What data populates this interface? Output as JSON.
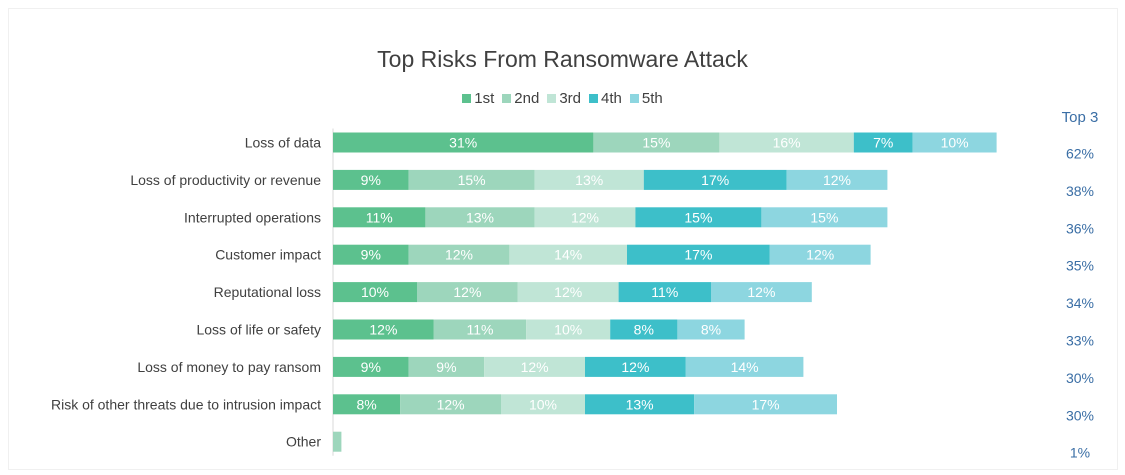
{
  "chart_data": {
    "type": "bar",
    "orientation": "horizontal",
    "stacked": true,
    "title": "Top Risks From Ransomware Attack",
    "categories": [
      "Loss of data",
      "Loss of productivity or revenue",
      "Interrupted operations",
      "Customer impact",
      "Reputational loss",
      "Loss of life or safety",
      "Loss of money to pay ransom",
      "Risk of other threats due to intrusion impact",
      "Other"
    ],
    "series": [
      {
        "name": "1st",
        "color": "#5cc18e",
        "values": [
          31,
          9,
          11,
          9,
          10,
          12,
          9,
          8,
          0
        ]
      },
      {
        "name": "2nd",
        "color": "#9dd6bc",
        "values": [
          15,
          15,
          13,
          12,
          12,
          11,
          9,
          12,
          1
        ]
      },
      {
        "name": "3rd",
        "color": "#c0e5d6",
        "values": [
          16,
          13,
          12,
          14,
          12,
          10,
          12,
          10,
          0
        ]
      },
      {
        "name": "4th",
        "color": "#3dbfc9",
        "values": [
          7,
          17,
          15,
          17,
          11,
          8,
          12,
          13,
          0
        ]
      },
      {
        "name": "5th",
        "color": "#8dd6e0",
        "values": [
          10,
          12,
          15,
          12,
          12,
          8,
          14,
          17,
          0
        ]
      }
    ],
    "data_labels": [
      [
        "31%",
        "15%",
        "16%",
        "7%",
        "10%"
      ],
      [
        "9%",
        "15%",
        "13%",
        "17%",
        "12%"
      ],
      [
        "11%",
        "13%",
        "12%",
        "15%",
        "15%"
      ],
      [
        "9%",
        "12%",
        "14%",
        "17%",
        "12%"
      ],
      [
        "10%",
        "12%",
        "12%",
        "11%",
        "12%"
      ],
      [
        "12%",
        "11%",
        "10%",
        "8%",
        "8%"
      ],
      [
        "9%",
        "9%",
        "12%",
        "12%",
        "14%"
      ],
      [
        "8%",
        "12%",
        "10%",
        "13%",
        "17%"
      ],
      [
        "",
        "",
        "",
        "",
        ""
      ]
    ],
    "top3_header": "Top 3",
    "top3_values": [
      "62%",
      "38%",
      "36%",
      "35%",
      "34%",
      "33%",
      "30%",
      "30%",
      "1%"
    ],
    "legend_position": "top",
    "grid": false
  }
}
